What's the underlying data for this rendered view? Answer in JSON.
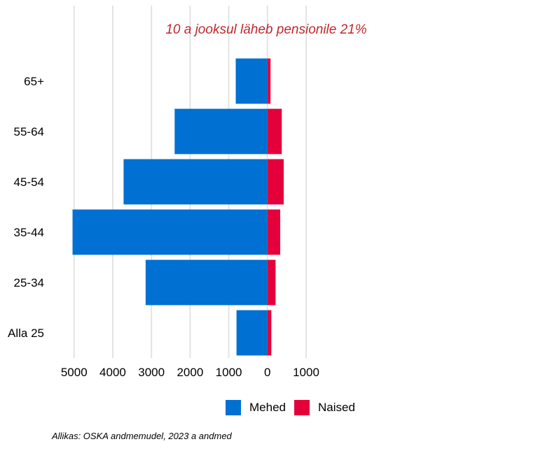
{
  "chart_data": {
    "type": "bar",
    "orientation": "horizontal",
    "stacked": true,
    "diverging": true,
    "categories": [
      "65+",
      "55-64",
      "45-54",
      "35-44",
      "25-34",
      "Alla 25"
    ],
    "series": [
      {
        "name": "Mehed",
        "values": [
          -820,
          -2400,
          -3720,
          -5040,
          -3150,
          -800
        ],
        "color": "#0070d2"
      },
      {
        "name": "Naised",
        "values": [
          80,
          370,
          420,
          330,
          210,
          100
        ],
        "color": "#e4003a"
      }
    ],
    "annotation": "10 a jooksul läheb pensionile 21%",
    "annotation_color": "#c0282d",
    "xlim": [
      -5050,
      1000
    ],
    "xticks": [
      -5000,
      -4000,
      -3000,
      -2000,
      -1000,
      0,
      1000
    ],
    "xtick_labels": [
      "5000",
      "4000",
      "3000",
      "2000",
      "1000",
      "0",
      "1000"
    ],
    "grid": true,
    "grid_color": "#e4e4e4",
    "legend_position": "bottom",
    "source": "Allikas: OSKA andmemudel, 2023 a andmed"
  }
}
